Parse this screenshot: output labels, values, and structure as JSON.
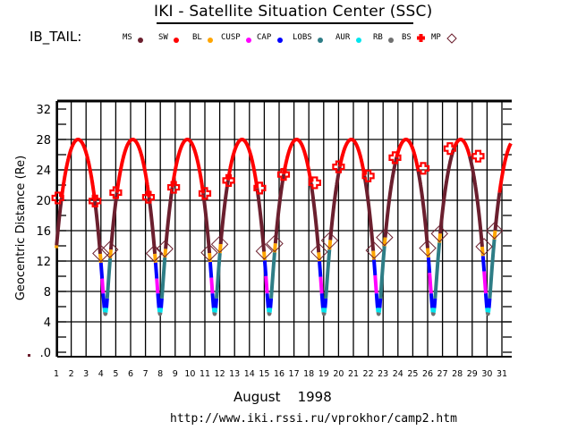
{
  "header": {
    "title": "IKI - Satellite Situation Center (SSC)",
    "satellite": "IB_TAIL:"
  },
  "legend": [
    {
      "key": "MS",
      "label": "MS",
      "color": "#6b1f2e",
      "symbol": "dot"
    },
    {
      "key": "SW",
      "label": "SW",
      "color": "#ff0000",
      "symbol": "dot"
    },
    {
      "key": "BL",
      "label": "BL",
      "color": "#ffa500",
      "symbol": "dot"
    },
    {
      "key": "CUSP",
      "label": "CUSP",
      "color": "#ff00ff",
      "symbol": "dot"
    },
    {
      "key": "CAP",
      "label": "CAP",
      "color": "#0000ff",
      "symbol": "dot"
    },
    {
      "key": "LOBS",
      "label": "LOBS",
      "color": "#2e7d86",
      "symbol": "dot"
    },
    {
      "key": "AUR",
      "label": "AUR",
      "color": "#00e5ee",
      "symbol": "dot"
    },
    {
      "key": "RB",
      "label": "RB",
      "color": "#707070",
      "symbol": "dot"
    },
    {
      "key": "BS",
      "label": "BS",
      "color": "#ff0000",
      "symbol": "cross"
    },
    {
      "key": "MP",
      "label": "MP",
      "color": "#6b1f2e",
      "symbol": "diamond"
    }
  ],
  "footer": {
    "month": "August    1998",
    "url": "http://www.iki.rssi.ru/vprokhor/camp2.htm"
  },
  "chart_data": {
    "type": "line",
    "title": "IKI - Satellite Situation Center (SSC)",
    "xlabel": "August 1998",
    "ylabel": "Geocentric Distance (Re)",
    "xlim": [
      1,
      31.6
    ],
    "ylim": [
      0,
      33
    ],
    "yticks": [
      0,
      4,
      8,
      12,
      16,
      20,
      24,
      28,
      32
    ],
    "ytick_labels": [
      ".0",
      "4",
      "8",
      "12",
      "16",
      "20",
      "24",
      "28",
      "32"
    ],
    "xticks": [
      1,
      2,
      3,
      4,
      5,
      6,
      7,
      8,
      9,
      10,
      11,
      12,
      13,
      14,
      15,
      16,
      17,
      18,
      19,
      20,
      21,
      22,
      23,
      24,
      25,
      26,
      27,
      28,
      29,
      30,
      31
    ],
    "grid": true,
    "orbit": {
      "apogee_re": 28,
      "perigee_re": 5,
      "period_days": 3.68,
      "first_perigee_day": 4.3
    },
    "region_colors": {
      "MS": "#6b1f2e",
      "SW": "#ff0000",
      "BL": "#ffa500",
      "CUSP": "#ff00ff",
      "CAP": "#0000ff",
      "LOBS": "#2e7d86",
      "AUR": "#00e5ee",
      "RB": "#707070"
    },
    "bow_shock_crossings": [
      {
        "day": 1.1,
        "r": 20.3
      },
      {
        "day": 3.6,
        "r": 19.9
      },
      {
        "day": 5.0,
        "r": 21.0
      },
      {
        "day": 7.2,
        "r": 20.4
      },
      {
        "day": 8.9,
        "r": 21.7
      },
      {
        "day": 11.0,
        "r": 20.9
      },
      {
        "day": 12.6,
        "r": 22.6
      },
      {
        "day": 14.7,
        "r": 21.6
      },
      {
        "day": 16.3,
        "r": 23.4
      },
      {
        "day": 18.4,
        "r": 22.3
      },
      {
        "day": 20.0,
        "r": 24.4
      },
      {
        "day": 22.0,
        "r": 23.2
      },
      {
        "day": 23.8,
        "r": 25.6
      },
      {
        "day": 25.7,
        "r": 24.2
      },
      {
        "day": 27.5,
        "r": 26.8
      },
      {
        "day": 29.4,
        "r": 25.8
      }
    ],
    "magnetopause_crossings": [
      {
        "day": 4.0,
        "r": 13.0
      },
      {
        "day": 4.6,
        "r": 13.5
      },
      {
        "day": 7.6,
        "r": 13.0
      },
      {
        "day": 8.3,
        "r": 13.6
      },
      {
        "day": 11.3,
        "r": 13.1
      },
      {
        "day": 12.0,
        "r": 14.2
      },
      {
        "day": 15.0,
        "r": 13.3
      },
      {
        "day": 15.7,
        "r": 14.3
      },
      {
        "day": 18.7,
        "r": 13.2
      },
      {
        "day": 19.4,
        "r": 14.7
      },
      {
        "day": 22.4,
        "r": 13.4
      },
      {
        "day": 23.1,
        "r": 15.1
      },
      {
        "day": 26.0,
        "r": 13.7
      },
      {
        "day": 26.8,
        "r": 15.6
      },
      {
        "day": 29.8,
        "r": 13.9
      },
      {
        "day": 30.5,
        "r": 16.0
      }
    ]
  }
}
